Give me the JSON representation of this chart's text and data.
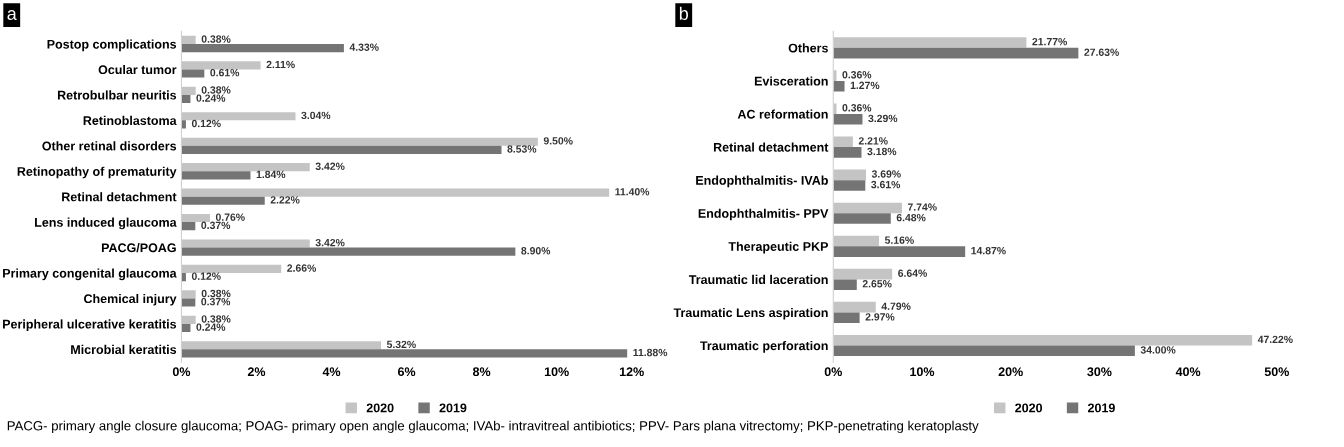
{
  "chart_data": [
    {
      "type": "bar",
      "orientation": "horizontal",
      "categories": [
        "Postop complications",
        "Ocular tumor",
        "Retrobulbar neuritis",
        "Retinoblastoma",
        "Other retinal disorders",
        "Retinopathy of prematurity",
        "Retinal detachment",
        "Lens induced glaucoma",
        "PACG/POAG",
        "Primary congenital glaucoma",
        "Chemical injury",
        "Peripheral ulcerative keratitis",
        "Microbial keratitis"
      ],
      "series": [
        {
          "name": "2020",
          "color": "#c4c4c4",
          "values": [
            0.38,
            2.11,
            0.38,
            3.04,
            9.5,
            3.42,
            11.4,
            0.76,
            3.42,
            2.66,
            0.38,
            0.38,
            5.32
          ],
          "value_labels": [
            "0.38%",
            "2.11%",
            "0.38%",
            "3.04%",
            "9.50%",
            "3.42%",
            "11.40%",
            "0.76%",
            "3.42%",
            "2.66%",
            "0.38%",
            "0.38%",
            "5.32%"
          ]
        },
        {
          "name": "2019",
          "color": "#747474",
          "values": [
            4.33,
            0.61,
            0.24,
            0.12,
            8.53,
            1.84,
            2.22,
            0.37,
            8.9,
            0.12,
            0.37,
            0.24,
            11.88
          ],
          "value_labels": [
            "4.33%",
            "0.61%",
            "0.24%",
            "0.12%",
            "8.53%",
            "1.84%",
            "2.22%",
            "0.37%",
            "8.90%",
            "0.12%",
            "0.37%",
            "0.24%",
            "11.88%"
          ]
        }
      ],
      "xlim": [
        0,
        12
      ],
      "xticks": [
        {
          "value": 0,
          "label": "0%"
        },
        {
          "value": 2,
          "label": "2%"
        },
        {
          "value": 4,
          "label": "4%"
        },
        {
          "value": 6,
          "label": "6%"
        },
        {
          "value": 8,
          "label": "8%"
        },
        {
          "value": 10,
          "label": "10%"
        },
        {
          "value": 12,
          "label": "12%"
        }
      ],
      "legend": "bottom",
      "grid": false,
      "annotations": [
        "a",
        "PACG- primary angle closure glaucoma; POAG- primary open angle glaucoma; IVAb- intravitreal antibiotics; PPV- Pars plana vitrectomy; PKP-penetrating keratoplasty"
      ]
    },
    {
      "type": "bar",
      "orientation": "horizontal",
      "categories": [
        "Others",
        "Evisceration",
        "AC reformation",
        "Retinal detachment",
        "Endophthalmitis- IVAb",
        "Endophthalmitis- PPV",
        "Therapeutic PKP",
        "Traumatic lid laceration",
        "Traumatic Lens aspiration",
        "Traumatic perforation"
      ],
      "series": [
        {
          "name": "2020",
          "color": "#c4c4c4",
          "values": [
            21.77,
            0.36,
            0.36,
            2.21,
            3.69,
            7.74,
            5.16,
            6.64,
            4.79,
            47.22
          ],
          "value_labels": [
            "21.77%",
            "0.36%",
            "0.36%",
            "2.21%",
            "3.69%",
            "7.74%",
            "5.16%",
            "6.64%",
            "4.79%",
            "47.22%"
          ]
        },
        {
          "name": "2019",
          "color": "#747474",
          "values": [
            27.63,
            1.27,
            3.29,
            3.18,
            3.61,
            6.48,
            14.87,
            2.65,
            2.97,
            34.0
          ],
          "value_labels": [
            "27.63%",
            "1.27%",
            "3.29%",
            "3.18%",
            "3.61%",
            "6.48%",
            "14.87%",
            "2.65%",
            "2.97%",
            "34.00%"
          ]
        }
      ],
      "xlim": [
        0,
        50
      ],
      "xticks": [
        {
          "value": 0,
          "label": "0%"
        },
        {
          "value": 10,
          "label": "10%"
        },
        {
          "value": 20,
          "label": "20%"
        },
        {
          "value": 30,
          "label": "30%"
        },
        {
          "value": 40,
          "label": "40%"
        },
        {
          "value": 50,
          "label": "50%"
        }
      ],
      "legend": "bottom",
      "grid": false,
      "annotations": [
        "b"
      ]
    }
  ]
}
